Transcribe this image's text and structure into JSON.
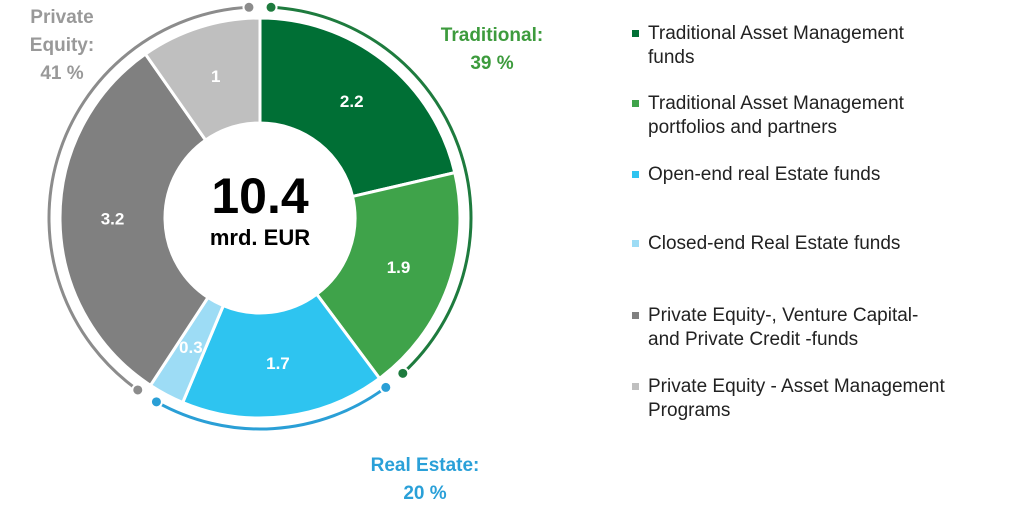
{
  "chart_data": {
    "type": "donut",
    "center_value": "10.4",
    "center_unit": "mrd. EUR",
    "categories": [
      "Traditional Asset Management\nfunds",
      "Traditional Asset Management\nportfolios and partners",
      "Open-end real Estate funds",
      "Closed-end Real Estate funds",
      "Private Equity-, Venture Capital-\nand Private Credit -funds",
      "Private Equity - Asset Management\nPrograms"
    ],
    "values": [
      2.2,
      1.9,
      1.7,
      0.3,
      3.2,
      1.0
    ],
    "colors": [
      "#006f35",
      "#3fa34a",
      "#2ec4f0",
      "#9ddcf5",
      "#808080",
      "#bfbfbf"
    ],
    "groups": [
      {
        "name": "Traditional:",
        "value": 39,
        "value_label": "39 %",
        "color": "#1e7b3e",
        "text_color": "#3d9b3d"
      },
      {
        "name": "Real Estate:",
        "value": 20,
        "value_label": "20 %",
        "color": "#2a9fd6",
        "text_color": "#2aa0d8"
      },
      {
        "name": "Private\nEquity:",
        "value": 41,
        "value_label": "41 %",
        "color": "#8c8c8c",
        "text_color": "#999999"
      }
    ]
  }
}
